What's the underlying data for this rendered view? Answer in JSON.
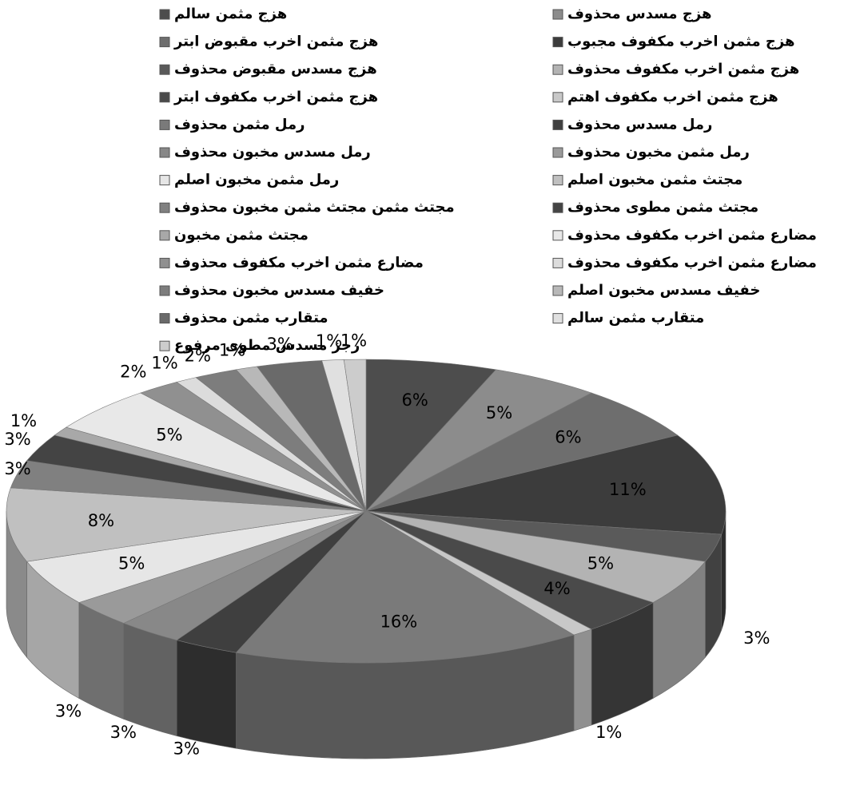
{
  "chart_data": {
    "type": "pie",
    "categories": [
      "هزج مثمن سالم",
      "هزج مسدس محذوف",
      "هزج مثمن اخرب مقبوض ابتر",
      "هزج مثمن اخرب مكفوف مجبوب",
      "هزج مسدس مقبوض محذوف",
      "هزج مثمن اخرب مكفوف محذوف",
      "هزج مثمن اخرب مكفوف ابتر",
      "هزج مثمن اخرب مكفوف اهتم",
      "رمل مثمن محذوف",
      "رمل مسدس محذوف",
      "رمل مسدس مخبون محذوف",
      "رمل مثمن مخبون محذوف",
      "رمل مثمن مخبون اصلم",
      "مجتث مثمن مخبون اصلم",
      "مجتث مثمن مجتث مثمن مخبون محذوف",
      "مجتث مثمن مطوى محذوف",
      "مجتث مثمن مخبون",
      "مضارع مثمن اخرب مكفوف محذوف",
      "مضارع مثمن اخرب مكفوف محذوف",
      "مضارع مثمن اخرب مكفوف محذوف",
      "خفيف مسدس مخبون محذوف",
      "خفيف مسدس مخبون اصلم",
      "متقارب مثمن محذوف",
      "متقارب مثمن سالم",
      "رجز مسدس مطوى مرفوع"
    ],
    "values": [
      6,
      5,
      6,
      11,
      3,
      5,
      4,
      1,
      16,
      3,
      3,
      3,
      5,
      8,
      3,
      3,
      1,
      5,
      2,
      1,
      2,
      1,
      3,
      1,
      1
    ],
    "value_labels": [
      "6%",
      "5%",
      "6%",
      "11%",
      "3%",
      "5%",
      "4%",
      "1%",
      "16%",
      "3%",
      "3%",
      "3%",
      "5%",
      "8%",
      "3%",
      "3%",
      "1%",
      "5%",
      "2%",
      "1%",
      "2%",
      "1%",
      "3%",
      "1%",
      "1%"
    ],
    "colors": [
      "#4d4d4d",
      "#8c8c8c",
      "#6e6e6e",
      "#3c3c3c",
      "#5a5a5a",
      "#b3b3b3",
      "#4a4a4a",
      "#c8c8c8",
      "#7a7a7a",
      "#3f3f3f",
      "#888888",
      "#9a9a9a",
      "#e6e6e6",
      "#c0c0c0",
      "#808080",
      "#444444",
      "#a8a8a8",
      "#e8e8e8",
      "#909090",
      "#dcdcdc",
      "#7d7d7d",
      "#b8b8b8",
      "#6a6a6a",
      "#e0e0e0",
      "#cccccc"
    ]
  }
}
